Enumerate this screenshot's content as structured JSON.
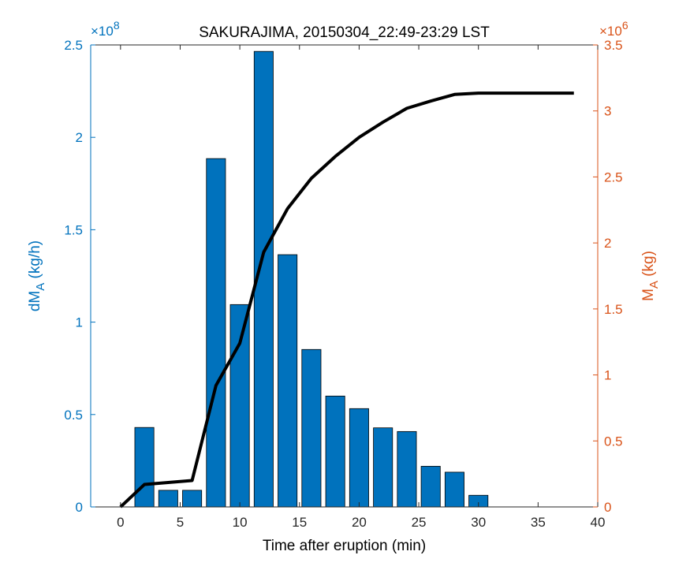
{
  "chart_data": {
    "type": "bar",
    "title": "SAKURAJIMA, 20150304_22:49-23:29 LST",
    "xlabel": "Time after eruption (min)",
    "ylabel_left": {
      "main": "dM",
      "sub": "A",
      "unit": " (kg/h)"
    },
    "ylabel_right": {
      "main": "M",
      "sub": "A",
      "unit": " (kg)"
    },
    "left_exponent": {
      "prefix": "×10",
      "power": "8"
    },
    "right_exponent": {
      "prefix": "×10",
      "power": "6"
    },
    "xlim": [
      -2.5,
      40
    ],
    "ylim_left": [
      0,
      2.5
    ],
    "ylim_right": [
      0,
      3.5
    ],
    "x_ticks": [
      "0",
      "5",
      "10",
      "15",
      "20",
      "25",
      "30",
      "35",
      "40"
    ],
    "y_left_ticks": [
      "0",
      "0.5",
      "1",
      "1.5",
      "2",
      "2.5"
    ],
    "y_right_ticks": [
      "0",
      "0.5",
      "1",
      "1.5",
      "2",
      "2.5",
      "3",
      "3.5"
    ],
    "left_axis_color": "#0072BD",
    "right_axis_color": "#D95319",
    "bar_color": "#0072BD",
    "line_color": "#000000",
    "bars": {
      "name": "dM_A",
      "x": [
        2,
        4,
        6,
        8,
        10,
        12,
        14,
        16,
        18,
        20,
        22,
        24,
        26,
        28,
        30
      ],
      "values": [
        0.43,
        0.09,
        0.09,
        1.885,
        1.095,
        2.465,
        1.365,
        0.852,
        0.6,
        0.532,
        0.428,
        0.408,
        0.22,
        0.188,
        0.063
      ]
    },
    "line": {
      "name": "M_A",
      "x": [
        0,
        2,
        4,
        6,
        8,
        10,
        12,
        14,
        16,
        18,
        20,
        22,
        24,
        26,
        28,
        30,
        32,
        34,
        36,
        38
      ],
      "values": [
        0.0,
        0.17,
        0.185,
        0.2,
        0.92,
        1.24,
        1.93,
        2.26,
        2.49,
        2.655,
        2.8,
        2.915,
        3.02,
        3.075,
        3.125,
        3.135,
        3.135,
        3.135,
        3.135,
        3.135
      ]
    },
    "grid": false,
    "legend": "none"
  }
}
